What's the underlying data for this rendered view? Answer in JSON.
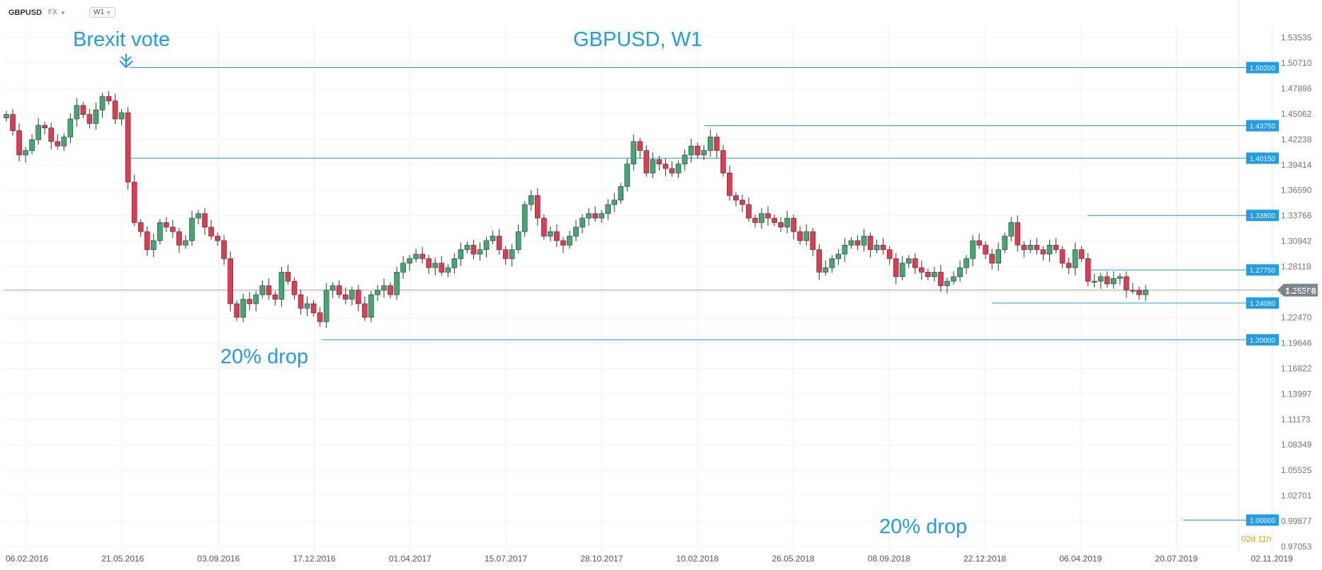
{
  "toolbar": {
    "symbol": "GBPUSD",
    "market": "FX",
    "timeframe": "W1"
  },
  "annotations": {
    "title": "GBPUSD, W1",
    "brexit": "Brexit vote",
    "drop1": "20% drop",
    "drop2": "20% drop"
  },
  "countdown": {
    "days": "02",
    "days_unit": "d",
    "hours": "11",
    "hours_unit": "h"
  },
  "colors": {
    "bull": "#3daa72",
    "bear": "#e8374f",
    "level": "#1e9cf0",
    "price_tag": "#7d8790",
    "text": "#1e9cf0"
  },
  "chart_data": {
    "type": "candlestick",
    "symbol": "GBPUSD",
    "timeframe": "W1",
    "title": "GBPUSD, W1",
    "x_ticks": [
      "06.02.2016",
      "21.05.2016",
      "03.09.2016",
      "17.12.2016",
      "01.04.2017",
      "15.07.2017",
      "28.10.2017",
      "10.02.2018",
      "26.05.2018",
      "08.09.2018",
      "22.12.2018",
      "06.04.2019",
      "20.07.2019",
      "02.11.2019"
    ],
    "y_ticks": [
      "1.53535",
      "1.50710",
      "1.47886",
      "1.45062",
      "1.42238",
      "1.39414",
      "1.36590",
      "1.33766",
      "1.30942",
      "1.28118",
      "1.25294",
      "1.22470",
      "1.19646",
      "1.16822",
      "1.13997",
      "1.11173",
      "1.08349",
      "1.05525",
      "1.02701",
      "0.99877",
      "0.97053"
    ],
    "ylim": [
      0.97053,
      1.53535
    ],
    "current_price": "1.25508",
    "levels": [
      {
        "value": 1.502,
        "label": "1.50200",
        "from_date": "21.05.2016"
      },
      {
        "value": 1.4375,
        "label": "1.43750",
        "from_date": "10.02.2018"
      },
      {
        "value": 1.4015,
        "label": "1.40150",
        "from_date": "21.05.2016"
      },
      {
        "value": 1.338,
        "label": "1.33800",
        "from_date": "06.04.2019"
      },
      {
        "value": 1.2775,
        "label": "1.27750",
        "from_date": "06.04.2019"
      },
      {
        "value": 1.2408,
        "label": "1.24080",
        "from_date": "22.12.2018"
      },
      {
        "value": 1.2,
        "label": "1.20000",
        "from_date": "17.12.2016"
      },
      {
        "value": 1.0,
        "label": "1.00000",
        "from_date": "20.07.2019"
      }
    ],
    "closes": [
      1.45,
      1.432,
      1.405,
      1.41,
      1.422,
      1.438,
      1.435,
      1.42,
      1.415,
      1.425,
      1.445,
      1.46,
      1.45,
      1.44,
      1.455,
      1.47,
      1.465,
      1.445,
      1.452,
      1.375,
      1.33,
      1.32,
      1.3,
      1.31,
      1.33,
      1.325,
      1.32,
      1.305,
      1.31,
      1.335,
      1.34,
      1.325,
      1.315,
      1.31,
      1.29,
      1.24,
      1.225,
      1.245,
      1.24,
      1.25,
      1.26,
      1.25,
      1.245,
      1.275,
      1.265,
      1.25,
      1.235,
      1.24,
      1.23,
      1.22,
      1.255,
      1.26,
      1.25,
      1.245,
      1.255,
      1.24,
      1.225,
      1.25,
      1.255,
      1.26,
      1.25,
      1.275,
      1.285,
      1.29,
      1.295,
      1.29,
      1.28,
      1.285,
      1.275,
      1.28,
      1.29,
      1.3,
      1.305,
      1.295,
      1.3,
      1.31,
      1.315,
      1.3,
      1.29,
      1.3,
      1.32,
      1.35,
      1.36,
      1.335,
      1.315,
      1.32,
      1.31,
      1.305,
      1.315,
      1.325,
      1.335,
      1.34,
      1.335,
      1.34,
      1.35,
      1.355,
      1.37,
      1.395,
      1.42,
      1.41,
      1.385,
      1.4,
      1.395,
      1.39,
      1.385,
      1.395,
      1.405,
      1.415,
      1.405,
      1.41,
      1.425,
      1.41,
      1.385,
      1.36,
      1.355,
      1.35,
      1.335,
      1.33,
      1.34,
      1.335,
      1.33,
      1.325,
      1.335,
      1.32,
      1.31,
      1.32,
      1.3,
      1.275,
      1.28,
      1.29,
      1.295,
      1.305,
      1.31,
      1.305,
      1.315,
      1.3,
      1.305,
      1.3,
      1.29,
      1.27,
      1.285,
      1.29,
      1.28,
      1.275,
      1.27,
      1.275,
      1.26,
      1.265,
      1.27,
      1.28,
      1.29,
      1.31,
      1.305,
      1.295,
      1.285,
      1.3,
      1.315,
      1.33,
      1.305,
      1.3,
      1.305,
      1.3,
      1.295,
      1.305,
      1.3,
      1.285,
      1.28,
      1.3,
      1.29,
      1.265,
      1.265,
      1.27,
      1.262,
      1.268,
      1.27,
      1.255,
      1.255,
      1.25,
      1.255
    ]
  }
}
